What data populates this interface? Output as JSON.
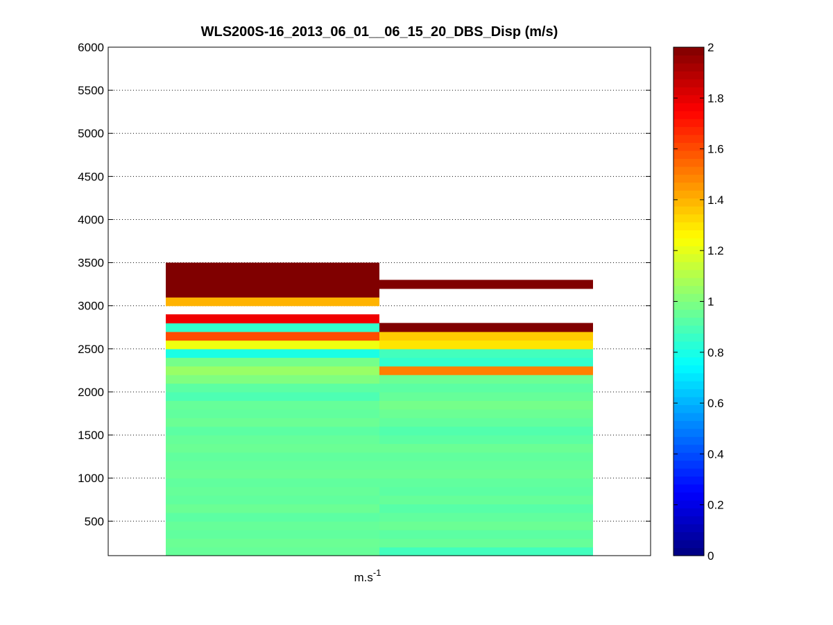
{
  "chart_data": {
    "type": "heatmap",
    "title": "WLS200S-16_2013_06_01__06_15_20_DBS_Disp (m/s)",
    "xlabel_base": "m.s",
    "xlabel_sup": "-1",
    "ylabel": "",
    "ylim": [
      100,
      6000
    ],
    "yticks": [
      500,
      1000,
      1500,
      2000,
      2500,
      3000,
      3500,
      4000,
      4500,
      5000,
      5500,
      6000
    ],
    "grid": true,
    "colorbar": {
      "min": 0,
      "max": 2,
      "colormap": "jet",
      "ticks": [
        "0",
        "0.2",
        "0.4",
        "0.6",
        "0.8",
        "1",
        "1.2",
        "1.4",
        "1.6",
        "1.8",
        "2"
      ]
    },
    "cell_height": 100,
    "columns": [
      {
        "bins": [
          {
            "bottom": 100,
            "value": 0.95
          },
          {
            "bottom": 200,
            "value": 0.96
          },
          {
            "bottom": 300,
            "value": 0.94
          },
          {
            "bottom": 400,
            "value": 0.95
          },
          {
            "bottom": 500,
            "value": 0.93
          },
          {
            "bottom": 600,
            "value": 0.96
          },
          {
            "bottom": 700,
            "value": 0.94
          },
          {
            "bottom": 800,
            "value": 0.95
          },
          {
            "bottom": 900,
            "value": 0.94
          },
          {
            "bottom": 1000,
            "value": 0.96
          },
          {
            "bottom": 1100,
            "value": 0.95
          },
          {
            "bottom": 1200,
            "value": 0.94
          },
          {
            "bottom": 1300,
            "value": 0.96
          },
          {
            "bottom": 1400,
            "value": 0.95
          },
          {
            "bottom": 1500,
            "value": 0.93
          },
          {
            "bottom": 1600,
            "value": 0.96
          },
          {
            "bottom": 1700,
            "value": 0.94
          },
          {
            "bottom": 1800,
            "value": 0.95
          },
          {
            "bottom": 1900,
            "value": 0.9
          },
          {
            "bottom": 2000,
            "value": 0.93
          },
          {
            "bottom": 2100,
            "value": 1.0
          },
          {
            "bottom": 2200,
            "value": 1.05
          },
          {
            "bottom": 2300,
            "value": 0.98
          },
          {
            "bottom": 2400,
            "value": 0.8
          },
          {
            "bottom": 2500,
            "value": 1.22
          },
          {
            "bottom": 2600,
            "value": 1.6
          },
          {
            "bottom": 2700,
            "value": 0.85
          },
          {
            "bottom": 2800,
            "value": 1.78
          },
          {
            "bottom": 3000,
            "value": 1.4
          },
          {
            "bottom": 3100,
            "value": 2.0
          },
          {
            "bottom": 3200,
            "value": 2.0
          },
          {
            "bottom": 3300,
            "value": 2.0
          },
          {
            "bottom": 3400,
            "value": 2.0
          }
        ]
      },
      {
        "bins": [
          {
            "bottom": 100,
            "value": 0.88
          },
          {
            "bottom": 200,
            "value": 0.95
          },
          {
            "bottom": 300,
            "value": 0.93
          },
          {
            "bottom": 400,
            "value": 0.96
          },
          {
            "bottom": 500,
            "value": 0.94
          },
          {
            "bottom": 600,
            "value": 0.92
          },
          {
            "bottom": 700,
            "value": 0.95
          },
          {
            "bottom": 800,
            "value": 0.93
          },
          {
            "bottom": 900,
            "value": 0.94
          },
          {
            "bottom": 1000,
            "value": 0.96
          },
          {
            "bottom": 1100,
            "value": 0.95
          },
          {
            "bottom": 1200,
            "value": 0.94
          },
          {
            "bottom": 1300,
            "value": 0.96
          },
          {
            "bottom": 1400,
            "value": 0.93
          },
          {
            "bottom": 1500,
            "value": 0.91
          },
          {
            "bottom": 1600,
            "value": 0.94
          },
          {
            "bottom": 1700,
            "value": 0.96
          },
          {
            "bottom": 1800,
            "value": 0.98
          },
          {
            "bottom": 1900,
            "value": 0.95
          },
          {
            "bottom": 2000,
            "value": 0.93
          },
          {
            "bottom": 2100,
            "value": 0.96
          },
          {
            "bottom": 2200,
            "value": 1.5
          },
          {
            "bottom": 2300,
            "value": 0.85
          },
          {
            "bottom": 2400,
            "value": 0.88
          },
          {
            "bottom": 2500,
            "value": 1.3
          },
          {
            "bottom": 2600,
            "value": 1.35
          },
          {
            "bottom": 2700,
            "value": 2.0
          },
          {
            "bottom": 3200,
            "value": 2.0
          }
        ]
      }
    ]
  }
}
